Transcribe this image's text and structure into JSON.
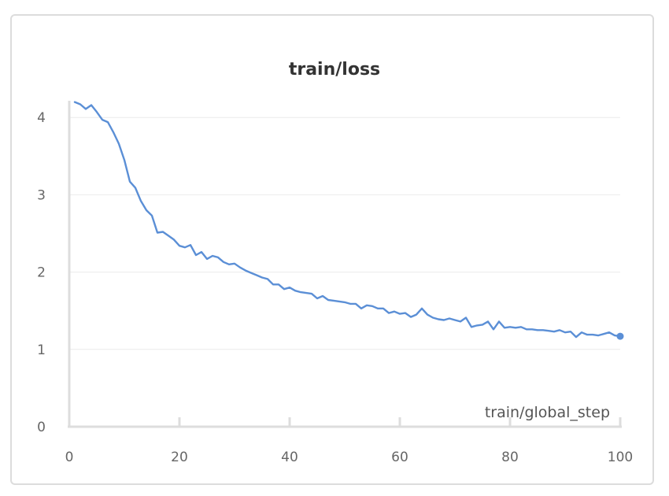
{
  "chart_data": {
    "type": "line",
    "title": "train/loss",
    "xlabel": "train/global_step",
    "ylabel": "",
    "xlim": [
      0,
      100
    ],
    "ylim": [
      0,
      4.2
    ],
    "xticks": [
      0,
      20,
      40,
      60,
      80,
      100
    ],
    "yticks": [
      0,
      1,
      2,
      3,
      4
    ],
    "grid": true,
    "colors": {
      "line": "#5b8fd6",
      "grid": "#ebebeb",
      "axis": "#dddddd"
    },
    "series": [
      {
        "x": [
          1,
          2,
          3,
          4,
          5,
          6,
          7,
          8,
          9,
          10,
          11,
          12,
          13,
          14,
          15,
          16,
          17,
          18,
          19,
          20,
          21,
          22,
          23,
          24,
          25,
          26,
          27,
          28,
          29,
          30,
          31,
          32,
          33,
          34,
          35,
          36,
          37,
          38,
          39,
          40,
          41,
          42,
          43,
          44,
          45,
          46,
          47,
          48,
          49,
          50,
          51,
          52,
          53,
          54,
          55,
          56,
          57,
          58,
          59,
          60,
          61,
          62,
          63,
          64,
          65,
          66,
          67,
          68,
          69,
          70,
          71,
          72,
          73,
          74,
          75,
          76,
          77,
          78,
          79,
          80,
          81,
          82,
          83,
          84,
          85,
          86,
          87,
          88,
          89,
          90,
          91,
          92,
          93,
          94,
          95,
          96,
          97,
          98,
          99,
          100
        ],
        "y": [
          4.2,
          4.17,
          4.11,
          4.16,
          4.07,
          3.97,
          3.94,
          3.81,
          3.66,
          3.45,
          3.17,
          3.09,
          2.92,
          2.8,
          2.73,
          2.51,
          2.52,
          2.47,
          2.42,
          2.34,
          2.32,
          2.35,
          2.22,
          2.26,
          2.17,
          2.21,
          2.19,
          2.13,
          2.1,
          2.11,
          2.06,
          2.02,
          1.99,
          1.96,
          1.93,
          1.91,
          1.84,
          1.84,
          1.78,
          1.8,
          1.76,
          1.74,
          1.73,
          1.72,
          1.66,
          1.69,
          1.64,
          1.63,
          1.62,
          1.61,
          1.59,
          1.59,
          1.53,
          1.57,
          1.56,
          1.53,
          1.53,
          1.47,
          1.49,
          1.46,
          1.47,
          1.42,
          1.45,
          1.53,
          1.45,
          1.41,
          1.39,
          1.38,
          1.4,
          1.38,
          1.36,
          1.41,
          1.29,
          1.31,
          1.32,
          1.36,
          1.26,
          1.36,
          1.28,
          1.29,
          1.28,
          1.29,
          1.26,
          1.26,
          1.25,
          1.25,
          1.24,
          1.23,
          1.25,
          1.22,
          1.23,
          1.16,
          1.22,
          1.19,
          1.19,
          1.18,
          1.2,
          1.22,
          1.18,
          1.17
        ]
      }
    ]
  }
}
